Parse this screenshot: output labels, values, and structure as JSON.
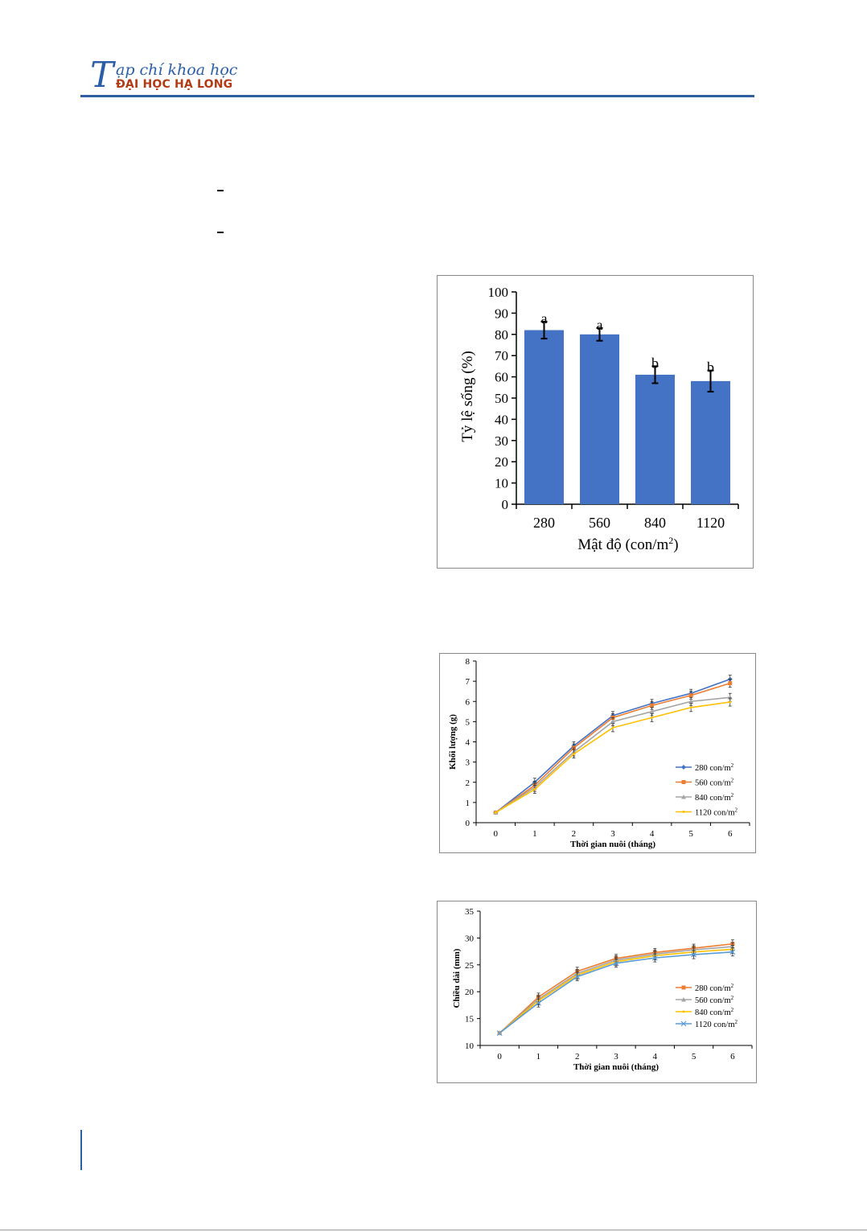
{
  "header": {
    "logo_letter": "T",
    "title_rest": "ạp chí khoa học",
    "subtitle": "ĐẠI HỌC HẠ LONG"
  },
  "colors": {
    "accent": "#2e5fa3",
    "bar": "#4472c4",
    "s280": "#4472c4",
    "s560": "#ed7d31",
    "s840": "#a5a5a5",
    "s1120": "#ffc000",
    "s1120b": "#5b9bd5"
  },
  "chart_data": [
    {
      "type": "bar",
      "categories": [
        "280",
        "560",
        "840",
        "1120"
      ],
      "values": [
        82,
        80,
        61,
        58
      ],
      "errors": [
        4,
        3,
        4,
        5
      ],
      "labels": [
        "a",
        "a",
        "b",
        "b"
      ],
      "ylabel": "Tỷ lệ sống (%)",
      "xlabel": "Mật độ (con/m",
      "xlabel_sup": "2",
      "xlabel_end": ")",
      "ylim": [
        0,
        100
      ],
      "yticks": [
        "0",
        "10",
        "20",
        "30",
        "40",
        "50",
        "60",
        "70",
        "80",
        "90",
        "100"
      ]
    },
    {
      "type": "line",
      "x": [
        0,
        1,
        2,
        3,
        4,
        5,
        6
      ],
      "xticks": [
        "0",
        "1",
        "2",
        "3",
        "4",
        "5",
        "6"
      ],
      "yticks": [
        "0",
        "1",
        "2",
        "3",
        "4",
        "5",
        "6",
        "7",
        "8"
      ],
      "ylim": [
        0,
        8
      ],
      "xlabel": "Thời gian nuôi (tháng)",
      "ylabel": "Khối lượng (g)",
      "legend": "bottom-right",
      "series": [
        {
          "name": "280 con/m",
          "values": [
            0.5,
            2.0,
            3.8,
            5.3,
            5.9,
            6.4,
            7.1
          ]
        },
        {
          "name": "560 con/m",
          "values": [
            0.5,
            1.85,
            3.7,
            5.2,
            5.8,
            6.3,
            6.9
          ]
        },
        {
          "name": "840 con/m",
          "values": [
            0.5,
            1.75,
            3.5,
            5.0,
            5.5,
            6.0,
            6.2
          ]
        },
        {
          "name": "1120 con/m",
          "values": [
            0.5,
            1.65,
            3.4,
            4.7,
            5.2,
            5.7,
            5.97
          ]
        }
      ]
    },
    {
      "type": "line",
      "x": [
        0,
        1,
        2,
        3,
        4,
        5,
        6
      ],
      "xticks": [
        "0",
        "1",
        "2",
        "3",
        "4",
        "5",
        "6"
      ],
      "yticks": [
        "10",
        "15",
        "20",
        "25",
        "30",
        "35"
      ],
      "ylim": [
        10,
        35
      ],
      "xlabel": "Thời gian nuôi (tháng)",
      "ylabel": "Chiều dài (mm)",
      "legend": "bottom-right",
      "series": [
        {
          "name": "280 con/m",
          "values": [
            12.3,
            19.0,
            23.8,
            26.2,
            27.3,
            28.1,
            28.9
          ]
        },
        {
          "name": "560 con/m",
          "values": [
            12.3,
            18.6,
            23.4,
            25.9,
            27.0,
            27.8,
            28.4
          ]
        },
        {
          "name": "840 con/m",
          "values": [
            12.3,
            18.3,
            23.1,
            25.6,
            26.7,
            27.4,
            27.9
          ]
        },
        {
          "name": "1120 con/m",
          "values": [
            12.3,
            17.9,
            22.8,
            25.3,
            26.3,
            26.9,
            27.4
          ]
        }
      ]
    }
  ]
}
